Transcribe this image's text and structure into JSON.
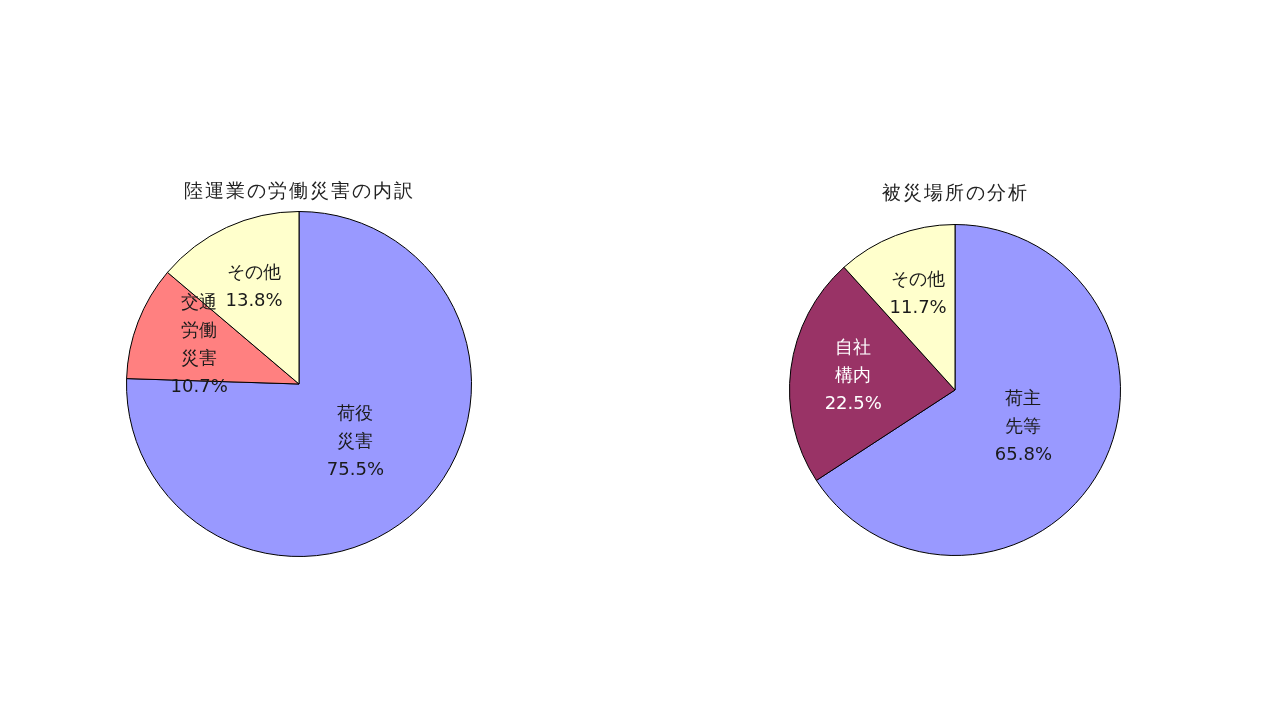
{
  "chart_data": [
    {
      "type": "pie",
      "title": "陸運業の労働災害の内訳",
      "categories": [
        "荷役災害",
        "交通労働災害",
        "その他"
      ],
      "values": [
        75.5,
        10.7,
        13.8
      ],
      "value_labels": [
        "75.5%",
        "10.7%",
        "13.8%"
      ],
      "colors": [
        "#9999ff",
        "#ff8080",
        "#ffffcc"
      ]
    },
    {
      "type": "pie",
      "title": "被災場所の分析",
      "categories": [
        "荷主先等",
        "自社構内",
        "その他"
      ],
      "values": [
        65.8,
        22.5,
        11.7
      ],
      "value_labels": [
        "65.8%",
        "22.5%",
        "11.7%"
      ],
      "colors": [
        "#9999ff",
        "#993366",
        "#ffffcc"
      ]
    }
  ]
}
